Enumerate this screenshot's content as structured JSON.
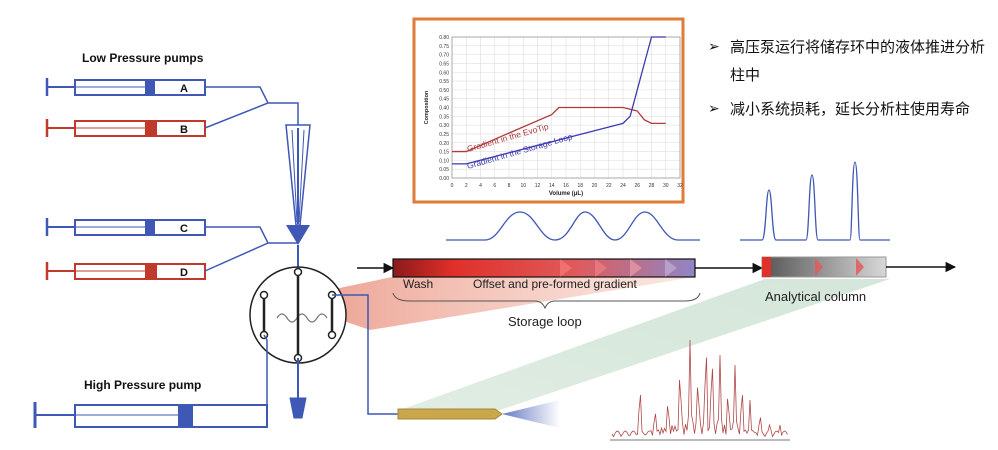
{
  "labels": {
    "low_pressure": "Low Pressure pumps",
    "high_pressure": "High Pressure pump",
    "pump_a": "A",
    "pump_b": "B",
    "pump_c": "C",
    "pump_d": "D",
    "wash": "Wash",
    "offset": "Offset and pre-formed gradient",
    "storage_loop": "Storage loop",
    "analytical_column": "Analytical column"
  },
  "bullets": [
    {
      "marker": "➢",
      "text": "高压泵运行将储存环中的液体推进分析柱中"
    },
    {
      "marker": "➢",
      "text": "减小系统损耗，延长分析柱使用寿命"
    }
  ],
  "colors": {
    "blue": "#3f57b5",
    "red": "#c0392b",
    "frame": "#e07b39",
    "gold": "#c9a74a"
  },
  "chart_data": {
    "type": "line",
    "xlabel": "Volume (μL)",
    "ylabel": "Composition",
    "xlim": [
      0,
      32
    ],
    "ylim": [
      0,
      0.8
    ],
    "xticks": [
      "0",
      "2",
      "4",
      "6",
      "8",
      "10",
      "12",
      "14",
      "16",
      "18",
      "20",
      "22",
      "24",
      "26",
      "28",
      "30",
      "32"
    ],
    "yticks": [
      "0.00",
      "0.05",
      "0.10",
      "0.15",
      "0.20",
      "0.25",
      "0.30",
      "0.35",
      "0.40",
      "0.45",
      "0.50",
      "0.55",
      "0.60",
      "0.65",
      "0.70",
      "0.75",
      "0.80"
    ],
    "grid": true,
    "series": [
      {
        "name": "Gradient in the EvoTip",
        "color": "#b03a3a",
        "x": [
          0,
          2,
          14,
          15,
          24,
          26,
          27,
          28,
          30
        ],
        "y": [
          0.15,
          0.15,
          0.36,
          0.4,
          0.4,
          0.38,
          0.33,
          0.31,
          0.31
        ]
      },
      {
        "name": "Gradient in the Storage Loop",
        "color": "#3b3bb0",
        "x": [
          0,
          2,
          24,
          25,
          28,
          30
        ],
        "y": [
          0.08,
          0.08,
          0.31,
          0.35,
          0.8,
          0.8
        ]
      }
    ]
  }
}
